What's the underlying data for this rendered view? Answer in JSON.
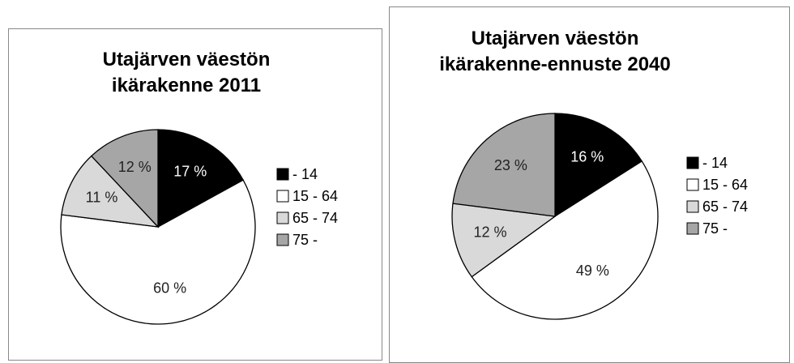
{
  "chart_data": [
    {
      "type": "pie",
      "title": "Utajärven väestön ikärakenne 2011",
      "categories": [
        "- 14",
        "15 - 64",
        "65 - 74",
        "75 -"
      ],
      "values": [
        17,
        60,
        11,
        12
      ],
      "value_labels": [
        "17 %",
        "60 %",
        "11 %",
        "12 %"
      ],
      "colors": [
        "#000000",
        "#ffffff",
        "#d9d9d9",
        "#a6a6a6"
      ],
      "legend": "right"
    },
    {
      "type": "pie",
      "title": "Utajärven väestön ikärakenne-ennuste 2040",
      "categories": [
        "- 14",
        "15 - 64",
        "65 - 74",
        "75 -"
      ],
      "values": [
        16,
        49,
        12,
        23
      ],
      "value_labels": [
        "16 %",
        "49 %",
        "12 %",
        "23 %"
      ],
      "colors": [
        "#000000",
        "#ffffff",
        "#d9d9d9",
        "#a6a6a6"
      ],
      "legend": "right"
    }
  ]
}
